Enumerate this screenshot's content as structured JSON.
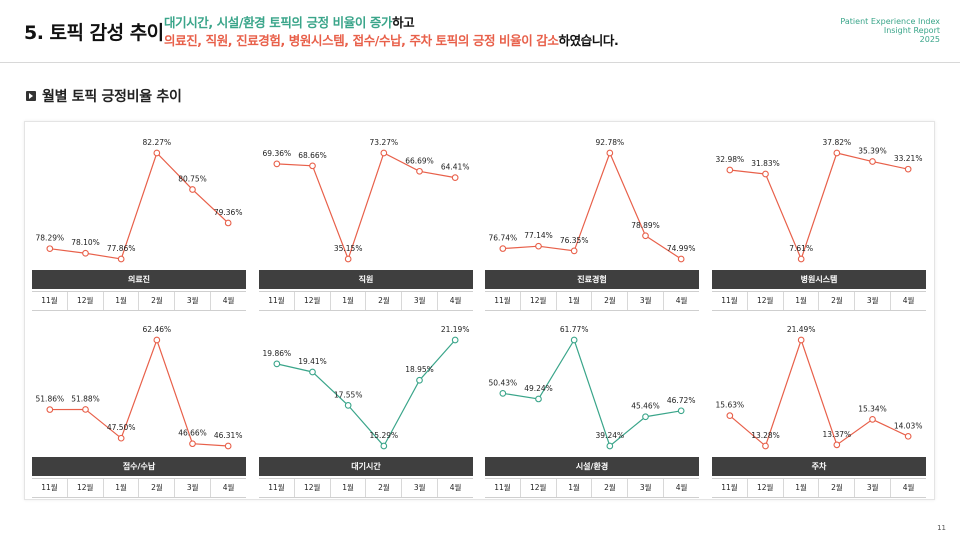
{
  "header": {
    "title": "5. 토픽 감성 추이",
    "line1_green": "대기시간, 시설/환경 토픽의 긍정 비율이 증가",
    "line1_black": "하고",
    "line2_red": "의료진, 직원, 진료경험, 병원시스템, 접수/수납, 주차 토픽의 긍정 비율이 감소",
    "line2_black": "하였습니다.",
    "brand_line1": "Patient Experience Index",
    "brand_line2": "Insight Report",
    "brand_line3": "2025"
  },
  "section_title": "월별 토픽 긍정비율 추이",
  "page_number": "11",
  "colors": {
    "red": "#e8604a",
    "green": "#3aa58a",
    "header_bg": "#3f3f3f"
  },
  "chart_data": [
    {
      "type": "line",
      "title": "의료진",
      "categories": [
        "11월",
        "12월",
        "1월",
        "2월",
        "3월",
        "4월"
      ],
      "values": [
        78.29,
        78.1,
        77.86,
        82.27,
        80.75,
        79.36
      ],
      "labels": [
        "78.29%",
        "78.10%",
        "77.86%",
        "82.27%",
        "80.75%",
        "79.36%"
      ],
      "color": "#e8604a"
    },
    {
      "type": "line",
      "title": "직원",
      "categories": [
        "11월",
        "12월",
        "1월",
        "2월",
        "3월",
        "4월"
      ],
      "values": [
        69.36,
        68.66,
        35.15,
        73.27,
        66.69,
        64.41
      ],
      "labels": [
        "69.36%",
        "68.66%",
        "35.15%",
        "73.27%",
        "66.69%",
        "64.41%"
      ],
      "color": "#e8604a"
    },
    {
      "type": "line",
      "title": "진료경험",
      "categories": [
        "11월",
        "12월",
        "1월",
        "2월",
        "3월",
        "4월"
      ],
      "values": [
        76.74,
        77.14,
        76.35,
        92.78,
        78.89,
        74.99
      ],
      "labels": [
        "76.74%",
        "77.14%",
        "76.35%",
        "92.78%",
        "78.89%",
        "74.99%"
      ],
      "color": "#e8604a"
    },
    {
      "type": "line",
      "title": "병원시스템",
      "categories": [
        "11월",
        "12월",
        "1월",
        "2월",
        "3월",
        "4월"
      ],
      "values": [
        32.98,
        31.83,
        7.61,
        37.82,
        35.39,
        33.21
      ],
      "labels": [
        "32.98%",
        "31.83%",
        "7.61%",
        "37.82%",
        "35.39%",
        "33.21%"
      ],
      "color": "#e8604a"
    },
    {
      "type": "line",
      "title": "접수/수납",
      "categories": [
        "11월",
        "12월",
        "1월",
        "2월",
        "3월",
        "4월"
      ],
      "values": [
        51.86,
        51.88,
        47.5,
        62.46,
        46.66,
        46.31
      ],
      "labels": [
        "51.86%",
        "51.88%",
        "47.50%",
        "62.46%",
        "46.66%",
        "46.31%"
      ],
      "color": "#e8604a"
    },
    {
      "type": "line",
      "title": "대기시간",
      "categories": [
        "11월",
        "12월",
        "1월",
        "2월",
        "3월",
        "4월"
      ],
      "values": [
        19.86,
        19.41,
        17.55,
        15.29,
        18.95,
        21.19
      ],
      "labels": [
        "19.86%",
        "19.41%",
        "17.55%",
        "15.29%",
        "18.95%",
        "21.19%"
      ],
      "color": "#3aa58a"
    },
    {
      "type": "line",
      "title": "시설/환경",
      "categories": [
        "11월",
        "12월",
        "1월",
        "2월",
        "3월",
        "4월"
      ],
      "values": [
        50.43,
        49.24,
        61.77,
        39.24,
        45.46,
        46.72
      ],
      "labels": [
        "50.43%",
        "49.24%",
        "61.77%",
        "39.24%",
        "45.46%",
        "46.72%"
      ],
      "color": "#3aa58a"
    },
    {
      "type": "line",
      "title": "주차",
      "categories": [
        "11월",
        "12월",
        "1월",
        "2월",
        "3월",
        "4월"
      ],
      "values": [
        15.63,
        13.28,
        21.49,
        13.37,
        15.34,
        14.03
      ],
      "labels": [
        "15.63%",
        "13.28%",
        "21.49%",
        "13.37%",
        "15.34%",
        "14.03%"
      ],
      "color": "#e8604a"
    }
  ]
}
